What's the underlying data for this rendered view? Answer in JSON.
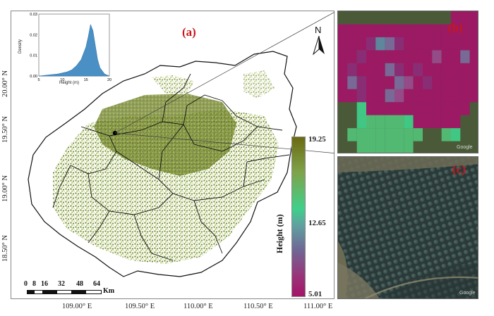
{
  "panels": {
    "a_label": "(a)",
    "b_label": "(b)",
    "c_label": "(c)"
  },
  "north_arrow": {
    "letter": "N",
    "icon": "north-arrow-icon"
  },
  "latitude_labels": [
    "20.00° N",
    "19.50° N",
    "19.00° N",
    "18.50° N"
  ],
  "longitude_labels": [
    "109.00° E",
    "109.50° E",
    "110.00° E",
    "110.50° E",
    "111.00° E"
  ],
  "colorbar": {
    "title": "Height (m)",
    "max_label": "19.25",
    "mid_label": "12.65",
    "min_label": "5.01",
    "colors": {
      "top": "#6b6a12",
      "upper": "#7fa34a",
      "middle": "#3fd08a",
      "lower": "#6e6a96",
      "bottom": "#a31468"
    }
  },
  "scale_bar": {
    "ticks": [
      "0",
      "8",
      "16",
      "32",
      "48",
      "64"
    ],
    "unit": "Km"
  },
  "inset_histogram": {
    "xlabel": "Height (m)",
    "ylabel": "Density",
    "y_ticks": [
      "0.00",
      "0.01",
      "0.02",
      "0.03"
    ],
    "x_ticks": [
      "5",
      "10",
      "15",
      "20"
    ],
    "color": "#4a90c4"
  },
  "watermarks": {
    "b": "Google",
    "c": "Google"
  },
  "chart_data": {
    "type": "area",
    "title": "",
    "xlabel": "Height (m)",
    "ylabel": "Density",
    "xlim": [
      5,
      20
    ],
    "ylim": [
      0,
      0.03
    ],
    "x": [
      5,
      7,
      9,
      10,
      11,
      12,
      13,
      14,
      15,
      15.5,
      16,
      16.5,
      17,
      17.5,
      18,
      19,
      20
    ],
    "y": [
      0.0,
      0.0005,
      0.001,
      0.0015,
      0.002,
      0.003,
      0.005,
      0.008,
      0.014,
      0.019,
      0.025,
      0.022,
      0.015,
      0.008,
      0.004,
      0.001,
      0.0
    ]
  }
}
